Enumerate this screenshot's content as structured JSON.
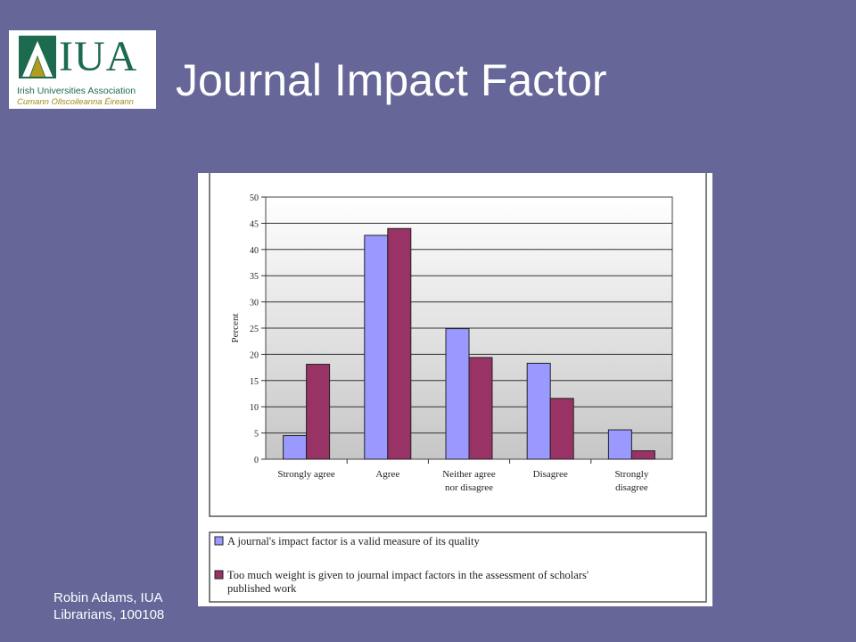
{
  "slide": {
    "title": "Journal Impact Factor",
    "footer_line1": "Robin Adams,  IUA",
    "footer_line2": "Librarians, 100108"
  },
  "logo": {
    "letters": "IUA",
    "association": "Irish Universities Association",
    "irish_name": "Cumann Ollscoileanna Éireann",
    "colors": {
      "green": "#1d6b4f",
      "gold": "#b39b1b"
    }
  },
  "colors": {
    "background": "#666699",
    "series1": "#9999ff",
    "series2": "#993366"
  },
  "chart_data": {
    "type": "bar",
    "categories": [
      "Strongly agree",
      "Agree",
      "Neither agree nor disagree",
      "Disagree",
      "Strongly disagree"
    ],
    "category_lines": [
      [
        "Strongly agree"
      ],
      [
        "Agree"
      ],
      [
        "Neither agree",
        "nor disagree"
      ],
      [
        "Disagree"
      ],
      [
        "Strongly",
        "disagree"
      ]
    ],
    "series": [
      {
        "name": "A journal's impact factor is a valid measure of its quality",
        "values": [
          4.5,
          42.7,
          24.9,
          18.3,
          5.6
        ]
      },
      {
        "name": "Too much weight is given to journal impact factors in the assessment of scholars' published work",
        "values": [
          18.1,
          44.0,
          19.4,
          11.6,
          1.6
        ]
      }
    ],
    "legend_lines": [
      [
        "A journal's impact factor is a valid measure of its quality"
      ],
      [
        "Too much weight is given to journal impact factors in the assessment of scholars'",
        "published work"
      ]
    ],
    "title": "",
    "xlabel": "",
    "ylabel": "Percent",
    "ylim": [
      0,
      50
    ],
    "yticks": [
      0,
      5,
      10,
      15,
      20,
      25,
      30,
      35,
      40,
      45,
      50
    ],
    "grid": true,
    "legend_position": "bottom"
  }
}
